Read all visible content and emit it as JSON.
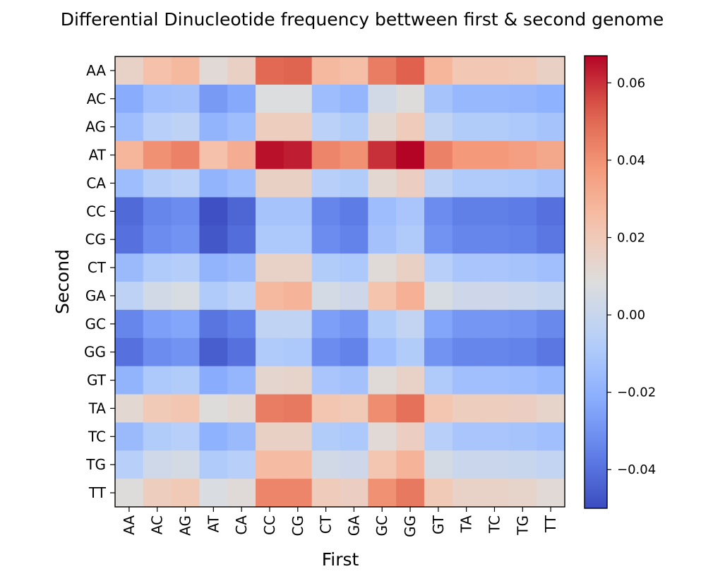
{
  "chart_data": {
    "type": "heatmap",
    "title": "Differential Dinucleotide frequency bettween first & second genome",
    "xlabel": "First",
    "ylabel": "Second",
    "x_categories": [
      "AA",
      "AC",
      "AG",
      "AT",
      "CA",
      "CC",
      "CG",
      "CT",
      "GA",
      "GC",
      "GG",
      "GT",
      "TA",
      "TC",
      "TG",
      "TT"
    ],
    "y_categories": [
      "AA",
      "AC",
      "AG",
      "AT",
      "CA",
      "CC",
      "CG",
      "CT",
      "GA",
      "GC",
      "GG",
      "GT",
      "TA",
      "TC",
      "TG",
      "TT"
    ],
    "colormap": "coolwarm",
    "vmin": -0.05,
    "vmax": 0.067,
    "colorbar_ticks": [
      -0.04,
      -0.02,
      0.0,
      0.02,
      0.04,
      0.06
    ],
    "colorbar_tick_labels": [
      "−0.04",
      "−0.02",
      "0.00",
      "0.02",
      "0.04",
      "0.06"
    ],
    "values": [
      [
        0.015,
        0.024,
        0.027,
        0.011,
        0.016,
        0.05,
        0.051,
        0.027,
        0.025,
        0.045,
        0.052,
        0.028,
        0.021,
        0.021,
        0.02,
        0.016
      ],
      [
        -0.022,
        -0.014,
        -0.013,
        -0.028,
        -0.023,
        0.008,
        0.008,
        -0.015,
        -0.018,
        0.004,
        0.009,
        -0.012,
        -0.017,
        -0.017,
        -0.018,
        -0.02
      ],
      [
        -0.015,
        -0.006,
        -0.004,
        -0.019,
        -0.015,
        0.018,
        0.018,
        -0.005,
        -0.008,
        0.012,
        0.019,
        -0.003,
        -0.008,
        -0.008,
        -0.01,
        -0.012
      ],
      [
        0.028,
        0.04,
        0.044,
        0.024,
        0.031,
        0.065,
        0.063,
        0.043,
        0.04,
        0.06,
        0.067,
        0.044,
        0.038,
        0.038,
        0.036,
        0.033
      ],
      [
        -0.015,
        -0.007,
        -0.005,
        -0.019,
        -0.015,
        0.016,
        0.016,
        -0.006,
        -0.008,
        0.012,
        0.017,
        -0.004,
        -0.009,
        -0.009,
        -0.01,
        -0.012
      ],
      [
        -0.042,
        -0.034,
        -0.032,
        -0.049,
        -0.043,
        -0.012,
        -0.012,
        -0.034,
        -0.037,
        -0.015,
        -0.011,
        -0.032,
        -0.036,
        -0.036,
        -0.037,
        -0.04
      ],
      [
        -0.04,
        -0.032,
        -0.03,
        -0.047,
        -0.041,
        -0.01,
        -0.01,
        -0.032,
        -0.035,
        -0.013,
        -0.009,
        -0.03,
        -0.034,
        -0.034,
        -0.035,
        -0.038
      ],
      [
        -0.016,
        -0.009,
        -0.007,
        -0.019,
        -0.016,
        0.015,
        0.015,
        -0.008,
        -0.01,
        0.01,
        0.016,
        -0.006,
        -0.011,
        -0.011,
        -0.012,
        -0.014
      ],
      [
        -0.004,
        0.004,
        0.006,
        -0.009,
        -0.005,
        0.027,
        0.029,
        0.005,
        0.002,
        0.023,
        0.03,
        0.006,
        0.002,
        0.002,
        0.001,
        -0.001
      ],
      [
        -0.034,
        -0.026,
        -0.024,
        -0.039,
        -0.035,
        -0.003,
        -0.003,
        -0.026,
        -0.029,
        -0.008,
        -0.002,
        -0.024,
        -0.029,
        -0.029,
        -0.03,
        -0.033
      ],
      [
        -0.04,
        -0.032,
        -0.03,
        -0.045,
        -0.04,
        -0.009,
        -0.01,
        -0.032,
        -0.035,
        -0.014,
        -0.008,
        -0.03,
        -0.034,
        -0.034,
        -0.035,
        -0.038
      ],
      [
        -0.019,
        -0.01,
        -0.008,
        -0.022,
        -0.018,
        0.013,
        0.014,
        -0.011,
        -0.013,
        0.01,
        0.015,
        -0.009,
        -0.014,
        -0.014,
        -0.015,
        -0.017
      ],
      [
        0.012,
        0.02,
        0.022,
        0.009,
        0.012,
        0.045,
        0.046,
        0.022,
        0.02,
        0.041,
        0.048,
        0.022,
        0.018,
        0.018,
        0.017,
        0.014
      ],
      [
        -0.016,
        -0.008,
        -0.006,
        -0.02,
        -0.016,
        0.016,
        0.016,
        -0.008,
        -0.01,
        0.011,
        0.017,
        -0.006,
        -0.011,
        -0.011,
        -0.012,
        -0.014
      ],
      [
        -0.006,
        0.003,
        0.005,
        -0.009,
        -0.006,
        0.026,
        0.026,
        0.004,
        0.002,
        0.022,
        0.029,
        0.005,
        0.001,
        0.001,
        0.0,
        -0.002
      ],
      [
        0.009,
        0.018,
        0.02,
        0.007,
        0.01,
        0.043,
        0.043,
        0.019,
        0.017,
        0.04,
        0.046,
        0.02,
        0.015,
        0.015,
        0.014,
        0.011
      ]
    ]
  }
}
